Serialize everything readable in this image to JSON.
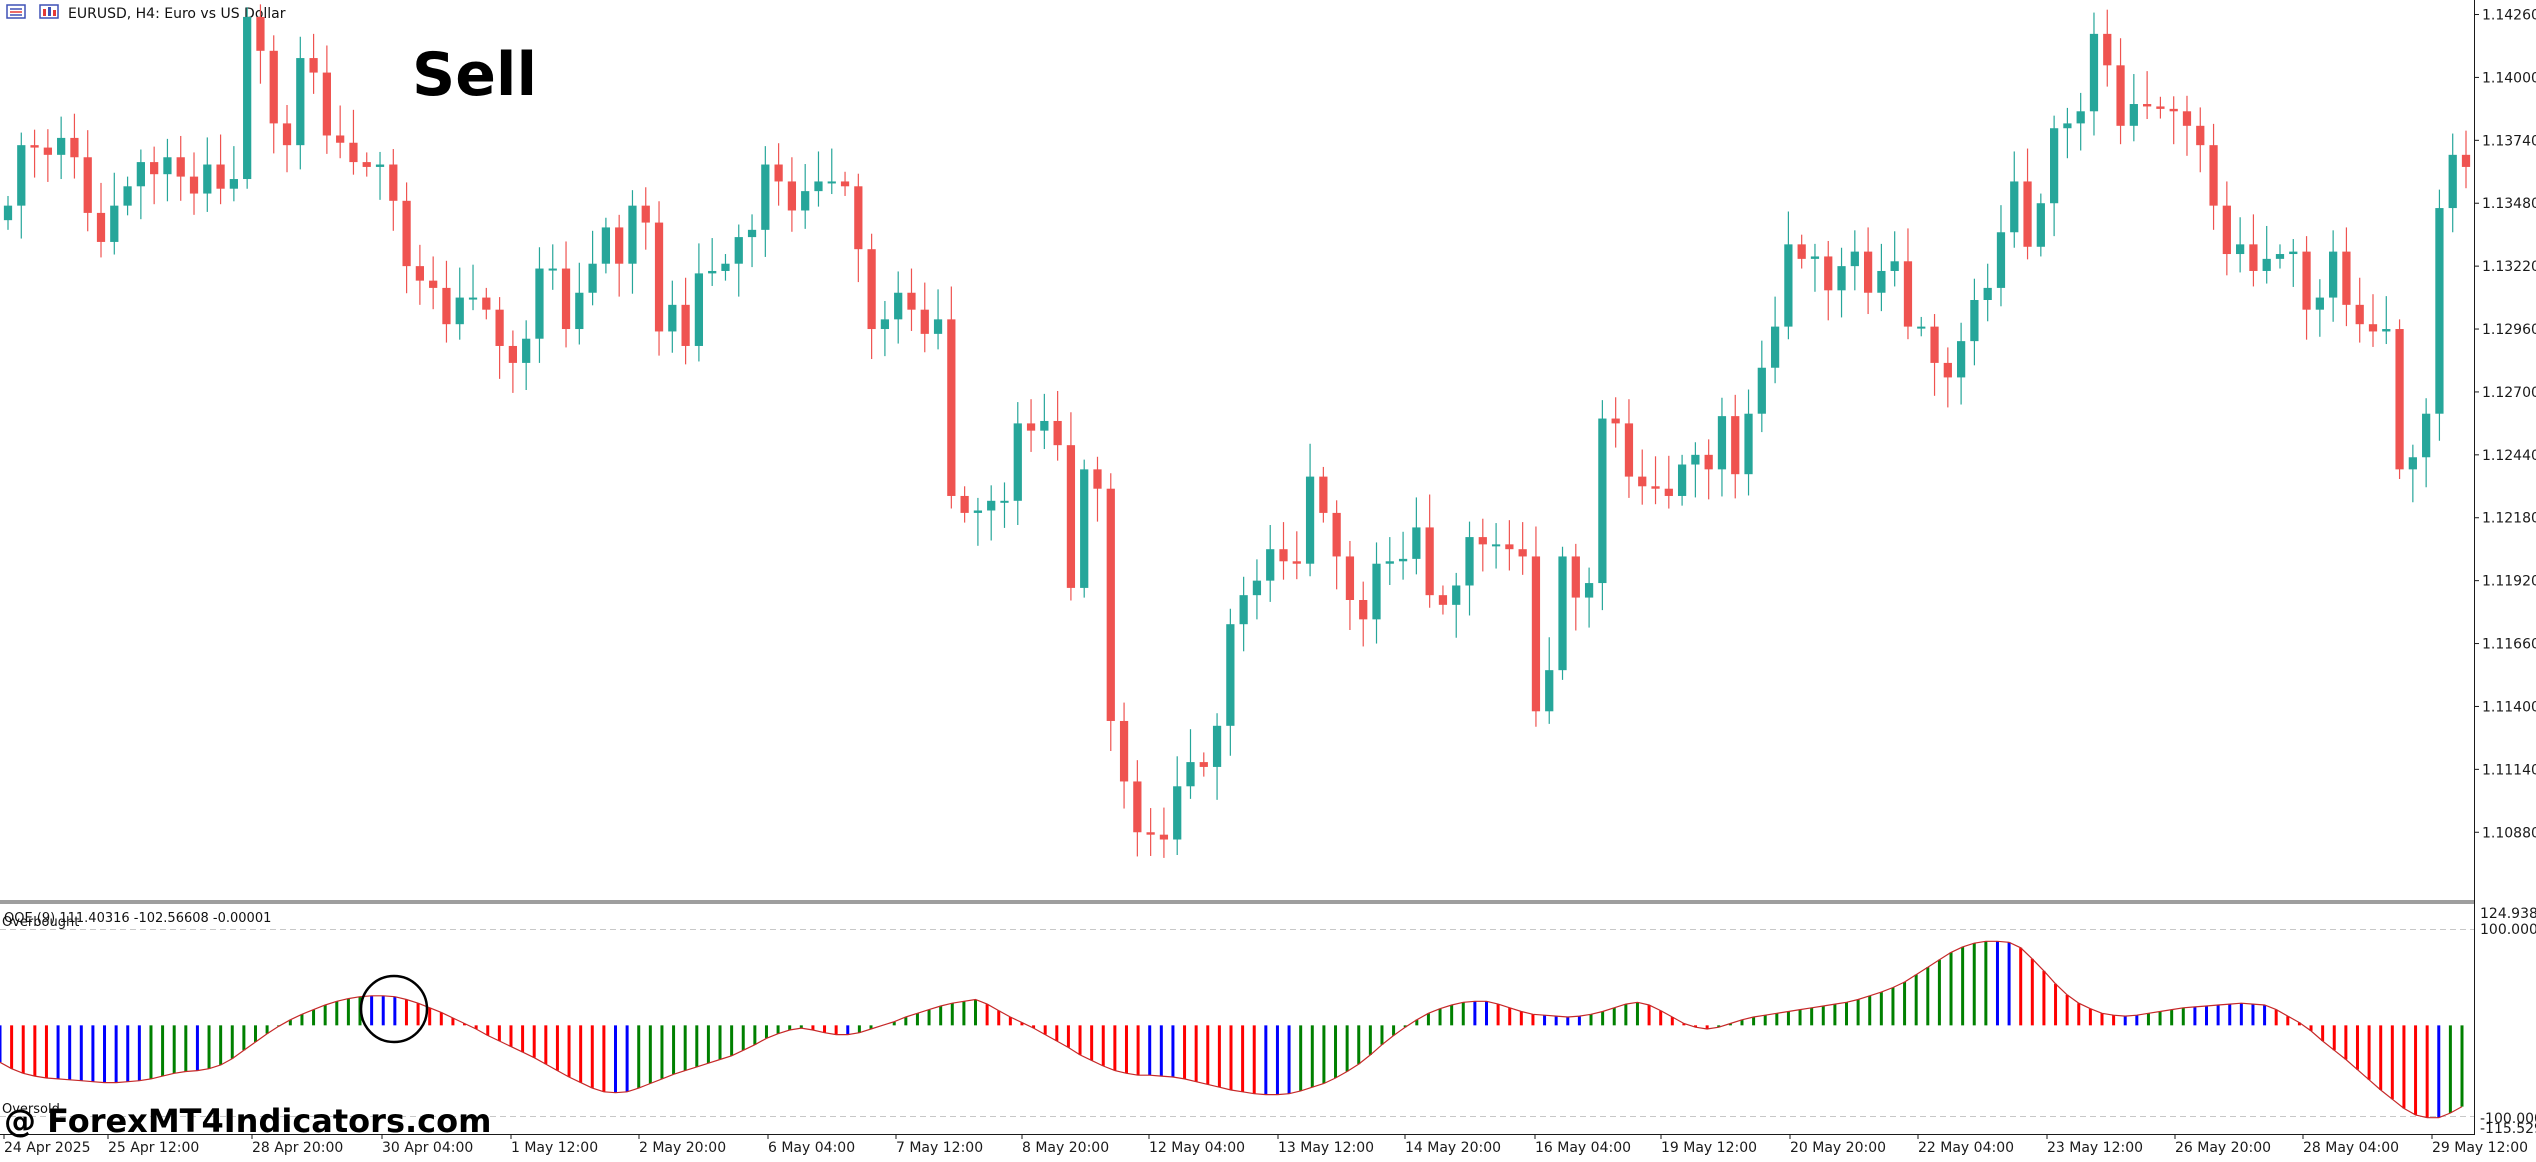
{
  "window": {
    "symbol_label": "EURUSD, H4:  Euro vs US Dollar",
    "annotation": "Sell"
  },
  "colors": {
    "bull": "#26a69a",
    "bear": "#ef5350",
    "osc_up": "#008000",
    "osc_down": "#ff0000",
    "osc_flat": "#0000ff",
    "separator": "#9e9e9e",
    "level_line": "#c8c8c8"
  },
  "price_axis": {
    "labels": [
      "1.14260",
      "1.14000",
      "1.13740",
      "1.13480",
      "1.13220",
      "1.12960",
      "1.12700",
      "1.12440",
      "1.12180",
      "1.11920",
      "1.11660",
      "1.11400",
      "1.11140",
      "1.10880"
    ]
  },
  "indicator": {
    "label": "QQE (9)  111.40316  -102.56608  -0.00001",
    "overbought_label": "Overbought",
    "oversold_label": "Oversold",
    "axis_labels": [
      "124.9380",
      "100.0000",
      "-100.0000",
      "-115.529"
    ]
  },
  "time_axis": {
    "labels": [
      "24 Apr 2025",
      "25 Apr 12:00",
      "28 Apr 20:00",
      "30 Apr 04:00",
      "1 May 12:00",
      "2 May 20:00",
      "6 May 04:00",
      "7 May 12:00",
      "8 May 20:00",
      "12 May 04:00",
      "13 May 12:00",
      "14 May 20:00",
      "16 May 04:00",
      "19 May 12:00",
      "20 May 20:00",
      "22 May 04:00",
      "23 May 12:00",
      "26 May 20:00",
      "28 May 04:00",
      "29 May 12:00"
    ]
  },
  "watermark": "@ ForexMT4Indicators.com",
  "chart_data": [
    {
      "type": "candlestick",
      "title": "EURUSD, H4:  Euro vs US Dollar",
      "ylim": [
        1.106,
        1.1432
      ],
      "y_ticks": [
        1.1426,
        1.14,
        1.1374,
        1.1348,
        1.1322,
        1.1296,
        1.127,
        1.1244,
        1.1218,
        1.1192,
        1.1166,
        1.114,
        1.1114,
        1.1088
      ],
      "close": [
        1.1347,
        1.1372,
        1.1371,
        1.1368,
        1.1375,
        1.1367,
        1.1344,
        1.1332,
        1.1347,
        1.1355,
        1.1365,
        1.136,
        1.1367,
        1.1359,
        1.1352,
        1.1364,
        1.1354,
        1.1358,
        1.1425,
        1.1411,
        1.1381,
        1.1372,
        1.1408,
        1.1402,
        1.1376,
        1.1373,
        1.1365,
        1.1363,
        1.1364,
        1.1349,
        1.1322,
        1.1316,
        1.1313,
        1.1298,
        1.1309,
        1.1309,
        1.1304,
        1.1289,
        1.1282,
        1.1292,
        1.1321,
        1.1321,
        1.1296,
        1.1311,
        1.1323,
        1.1338,
        1.1323,
        1.1347,
        1.134,
        1.1295,
        1.1306,
        1.1289,
        1.1319,
        1.132,
        1.1323,
        1.1334,
        1.1337,
        1.1364,
        1.1357,
        1.1345,
        1.1353,
        1.1357,
        1.1357,
        1.1355,
        1.1329,
        1.1296,
        1.13,
        1.1311,
        1.1304,
        1.1294,
        1.13,
        1.1227,
        1.122,
        1.1221,
        1.1225,
        1.1225,
        1.1257,
        1.1254,
        1.1258,
        1.1248,
        1.1189,
        1.1238,
        1.123,
        1.1134,
        1.1109,
        1.1088,
        1.1087,
        1.1085,
        1.1107,
        1.1117,
        1.1115,
        1.1132,
        1.1174,
        1.1186,
        1.1192,
        1.1205,
        1.12,
        1.1199,
        1.1235,
        1.122,
        1.1202,
        1.1184,
        1.1176,
        1.1199,
        1.12,
        1.1201,
        1.1214,
        1.1186,
        1.1182,
        1.119,
        1.121,
        1.1207,
        1.1207,
        1.1205,
        1.1202,
        1.1138,
        1.1155,
        1.1202,
        1.1185,
        1.1191,
        1.1259,
        1.1257,
        1.1235,
        1.1231,
        1.123,
        1.1227,
        1.124,
        1.1244,
        1.1238,
        1.126,
        1.1236,
        1.1261,
        1.128,
        1.1297,
        1.1331,
        1.1325,
        1.1326,
        1.1312,
        1.1322,
        1.1328,
        1.1311,
        1.132,
        1.1324,
        1.1297,
        1.1297,
        1.1282,
        1.1276,
        1.1291,
        1.1308,
        1.1313,
        1.1336,
        1.1357,
        1.133,
        1.1348,
        1.1379,
        1.1381,
        1.1386,
        1.1418,
        1.1405,
        1.138,
        1.1389,
        1.1388,
        1.1387,
        1.1386,
        1.138,
        1.1372,
        1.1347,
        1.1327,
        1.1331,
        1.132,
        1.1325,
        1.1327,
        1.1328,
        1.1304,
        1.1309,
        1.1328,
        1.1306,
        1.1298,
        1.1295,
        1.1296,
        1.1238,
        1.1243,
        1.1261,
        1.1346,
        1.1368,
        1.1363
      ],
      "open": [
        1.1341,
        1.1347,
        1.1372,
        1.1371,
        1.1368,
        1.1375,
        1.1367,
        1.1344,
        1.1332,
        1.1347,
        1.1355,
        1.1365,
        1.136,
        1.1367,
        1.1359,
        1.1352,
        1.1364,
        1.1354,
        1.1358,
        1.1425,
        1.1411,
        1.1381,
        1.1372,
        1.1408,
        1.1402,
        1.1376,
        1.1373,
        1.1365,
        1.1363,
        1.1364,
        1.1349,
        1.1322,
        1.1316,
        1.1313,
        1.1298,
        1.1309,
        1.1309,
        1.1304,
        1.1289,
        1.1282,
        1.1292,
        1.1321,
        1.1321,
        1.1296,
        1.1311,
        1.1323,
        1.1338,
        1.1323,
        1.1347,
        1.134,
        1.1295,
        1.1306,
        1.1289,
        1.1319,
        1.132,
        1.1323,
        1.1334,
        1.1337,
        1.1364,
        1.1357,
        1.1345,
        1.1353,
        1.1357,
        1.1357,
        1.1355,
        1.1329,
        1.1296,
        1.13,
        1.1311,
        1.1304,
        1.1294,
        1.13,
        1.1227,
        1.122,
        1.1221,
        1.1225,
        1.1225,
        1.1257,
        1.1254,
        1.1258,
        1.1248,
        1.1189,
        1.1238,
        1.123,
        1.1134,
        1.1109,
        1.1088,
        1.1087,
        1.1085,
        1.1107,
        1.1117,
        1.1115,
        1.1132,
        1.1174,
        1.1186,
        1.1192,
        1.1205,
        1.12,
        1.1199,
        1.1235,
        1.122,
        1.1202,
        1.1184,
        1.1176,
        1.1199,
        1.12,
        1.1201,
        1.1214,
        1.1186,
        1.1182,
        1.119,
        1.121,
        1.1207,
        1.1207,
        1.1205,
        1.1202,
        1.1138,
        1.1155,
        1.1202,
        1.1185,
        1.1191,
        1.1259,
        1.1257,
        1.1235,
        1.1231,
        1.123,
        1.1227,
        1.124,
        1.1244,
        1.1238,
        1.126,
        1.1236,
        1.1261,
        1.128,
        1.1297,
        1.1331,
        1.1325,
        1.1326,
        1.1312,
        1.1322,
        1.1328,
        1.1311,
        1.132,
        1.1324,
        1.1297,
        1.1297,
        1.1282,
        1.1276,
        1.1291,
        1.1308,
        1.1313,
        1.1336,
        1.1357,
        1.133,
        1.1348,
        1.1379,
        1.1381,
        1.1386,
        1.1418,
        1.1405,
        1.138,
        1.1389,
        1.1388,
        1.1387,
        1.1386,
        1.138,
        1.1372,
        1.1347,
        1.1327,
        1.1331,
        1.132,
        1.1325,
        1.1327,
        1.1328,
        1.1304,
        1.1309,
        1.1328,
        1.1306,
        1.1298,
        1.1295,
        1.1296,
        1.1238,
        1.1243,
        1.1261,
        1.1346,
        1.1368
      ],
      "note_empty": ""
    },
    {
      "type": "line",
      "title": "QQE (9)  111.40316  -102.56608  -0.00001",
      "ylim": [
        -115.529,
        124.938
      ],
      "levels": [
        100,
        -100
      ],
      "values": [
        -40,
        -47,
        -52,
        -55,
        -57,
        -58,
        -59,
        -60,
        -61,
        -62,
        -62,
        -61,
        -60,
        -58,
        -55,
        -52,
        -50,
        -49,
        -47,
        -43,
        -36,
        -27,
        -18,
        -9,
        -1,
        6,
        12,
        17,
        22,
        26,
        29,
        31,
        32,
        32,
        31,
        28,
        24,
        19,
        14,
        8,
        2,
        -4,
        -11,
        -17,
        -23,
        -29,
        -35,
        -42,
        -49,
        -56,
        -62,
        -68,
        -72,
        -73,
        -72,
        -68,
        -63,
        -58,
        -53,
        -49,
        -45,
        -41,
        -37,
        -33,
        -27,
        -21,
        -14,
        -9,
        -5,
        -3,
        -5,
        -8,
        -10,
        -10,
        -8,
        -4,
        0,
        4,
        9,
        13,
        17,
        21,
        24,
        26,
        28,
        23,
        16,
        9,
        3,
        -3,
        -10,
        -17,
        -24,
        -32,
        -38,
        -44,
        -49,
        -52,
        -54,
        -54,
        -55,
        -56,
        -58,
        -61,
        -64,
        -67,
        -70,
        -72,
        -74,
        -75,
        -75,
        -74,
        -71,
        -67,
        -63,
        -57,
        -50,
        -42,
        -32,
        -21,
        -11,
        -2,
        6,
        13,
        18,
        22,
        25,
        26,
        26,
        23,
        19,
        15,
        12,
        11,
        10,
        9,
        10,
        12,
        15,
        19,
        23,
        25,
        22,
        16,
        9,
        2,
        -2,
        -4,
        -2,
        2,
        6,
        9,
        11,
        13,
        15,
        17,
        19,
        21,
        23,
        25,
        28,
        32,
        36,
        41,
        47,
        55,
        63,
        71,
        79,
        85,
        89,
        91,
        91,
        90,
        84,
        72,
        59,
        45,
        33,
        24,
        18,
        13,
        11,
        10,
        11,
        13,
        15,
        17,
        19,
        20,
        21,
        22,
        23,
        24,
        23,
        22,
        17,
        10,
        3,
        -6,
        -17,
        -27,
        -37,
        -48,
        -59,
        -70,
        -80,
        -90,
        -97,
        -100,
        -100,
        -95,
        -88
      ]
    }
  ]
}
